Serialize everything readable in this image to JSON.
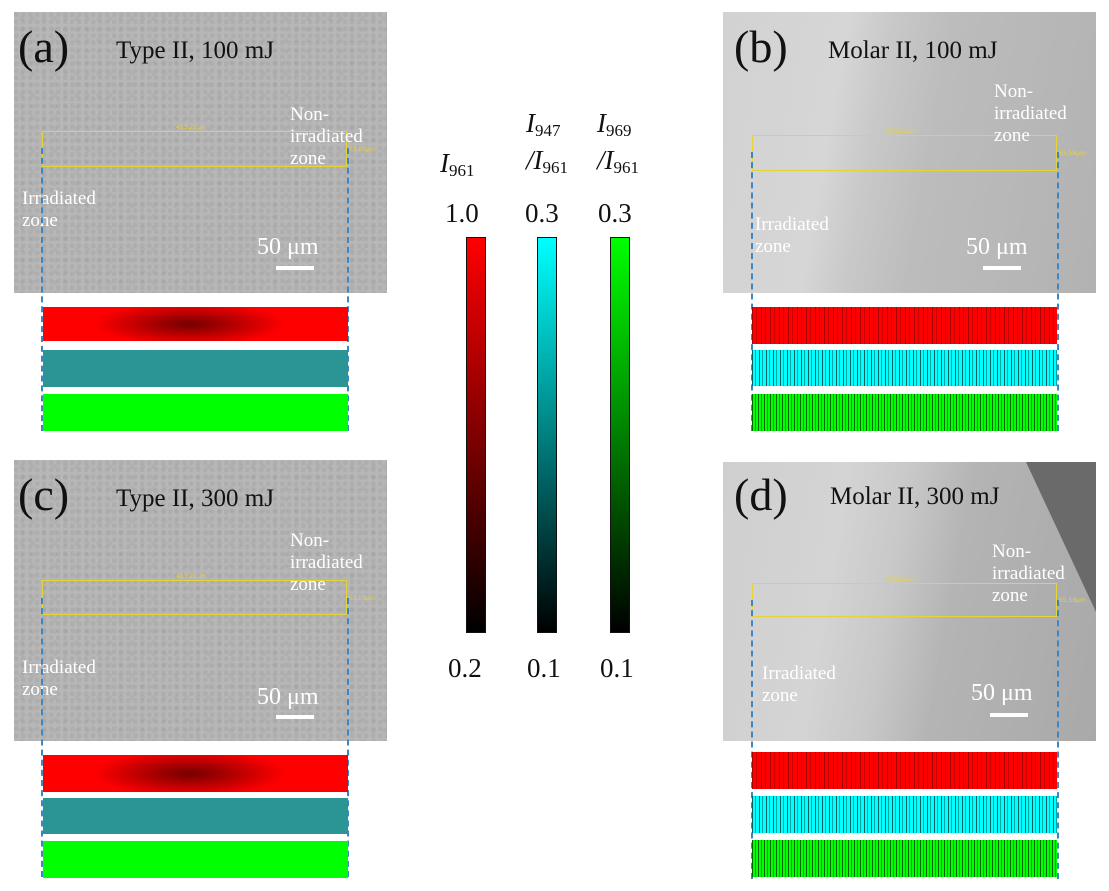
{
  "colors": {
    "red": "#ff0000",
    "cyan": "#00ffff",
    "teal": "#2b9495",
    "green": "#00ff00",
    "roi": "#e6d23a",
    "dash": "#3d86c6"
  },
  "panels": [
    {
      "id": "a",
      "label": "(a)",
      "title": "Type II, 100 mJ",
      "zone_non": [
        "Non-",
        "irradiated",
        "zone"
      ],
      "zone_irr": [
        "Irradiated",
        "zone"
      ],
      "scale": "50 μm",
      "roi_w": "413.21μm",
      "roi_h": "65.60μm"
    },
    {
      "id": "b",
      "label": "(b)",
      "title": "Molar II, 100 mJ",
      "zone_non": [
        "Non-",
        "irradiated",
        "zone"
      ],
      "zone_irr": [
        "Irradiated",
        "zone"
      ],
      "scale": "50 μm",
      "roi_w": "413.21μm",
      "roi_h": "65.58μm"
    },
    {
      "id": "c",
      "label": "(c)",
      "title": "Type II, 300 mJ",
      "zone_non": [
        "Non-",
        "irradiated",
        "zone"
      ],
      "zone_irr": [
        "Irradiated",
        "zone"
      ],
      "scale": "50 μm",
      "roi_w": "413.21μm",
      "roi_h": "65.58μm"
    },
    {
      "id": "d",
      "label": "(d)",
      "title": "Molar II, 300 mJ",
      "zone_non": [
        "Non-",
        "irradiated",
        "zone"
      ],
      "zone_irr": [
        "Irradiated",
        "zone"
      ],
      "scale": "50 μm",
      "roi_w": "413.21μm",
      "roi_h": "65.58μm"
    }
  ],
  "colorbars": [
    {
      "name": "I961",
      "sym": "I",
      "sub": "961",
      "den": "",
      "den_sub": "",
      "max": "1.0",
      "min": "0.2",
      "top": "#ff0000"
    },
    {
      "name": "I947/I961",
      "sym": "I",
      "sub": "947",
      "den": "/I",
      "den_sub": "961",
      "max": "0.3",
      "min": "0.1",
      "top": "#00ffff"
    },
    {
      "name": "I969/I961",
      "sym": "I",
      "sub": "969",
      "den": "/I",
      "den_sub": "961",
      "max": "0.3",
      "min": "0.1",
      "top": "#00ff00"
    }
  ]
}
